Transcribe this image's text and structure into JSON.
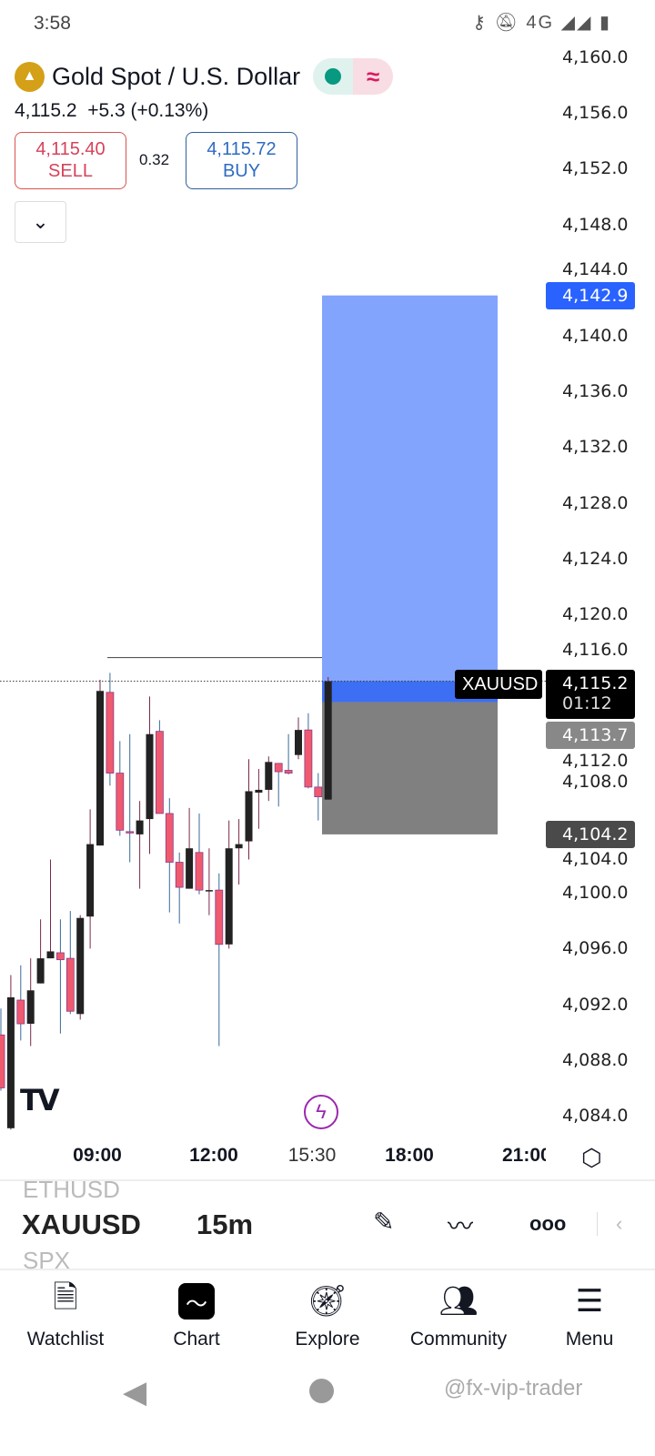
{
  "status_bar": {
    "time": "3:58",
    "icons": [
      "key-icon",
      "bell-off-icon",
      "volte-icon",
      "4g-icon",
      "signal-icon",
      "signal-icon",
      "battery-icon"
    ],
    "network": "4G"
  },
  "header": {
    "title": "Gold Spot / U.S. Dollar",
    "price": "4,115.2",
    "change": "+5.3 (+0.13%)",
    "sell_price": "4,115.40",
    "sell_label": "SELL",
    "spread": "0.32",
    "buy_price": "4,115.72",
    "buy_label": "BUY",
    "market_status": "open",
    "status_symbol": "≈"
  },
  "colors": {
    "up": "#222222",
    "down": "#f05a6e",
    "target": "#82a4fc",
    "target_dark": "#3d6ff5",
    "stop": "#808080",
    "sell": "#d6435a",
    "buy": "#2f6bc0"
  },
  "chart_data": {
    "type": "candlestick",
    "symbol": "XAUUSD",
    "interval": "15m",
    "ylim": [
      4084,
      4160
    ],
    "y_ticks": [
      "4,160.0",
      "4,156.0",
      "4,152.0",
      "4,148.0",
      "4,144.0",
      "4,140.0",
      "4,136.0",
      "4,132.0",
      "4,128.0",
      "4,124.0",
      "4,120.0",
      "4,116.0",
      "4,112.0",
      "4,108.0",
      "4,104.0",
      "4,100.0",
      "4,096.0",
      "4,092.0",
      "4,088.0",
      "4,084.0"
    ],
    "x_ticks": [
      "09:00",
      "12:00",
      "15:30",
      "18:00",
      "21:00"
    ],
    "candles_ohlc": [
      [
        4089.8,
        4091.7,
        4085.8,
        4086.0
      ],
      [
        4083.1,
        4094.1,
        4083.0,
        4092.5
      ],
      [
        4092.3,
        4094.8,
        4089.4,
        4090.6
      ],
      [
        4090.6,
        4095.3,
        4089.0,
        4093.0
      ],
      [
        4093.5,
        4098.1,
        4093.5,
        4095.3
      ],
      [
        4095.3,
        4102.4,
        4095.3,
        4095.8
      ],
      [
        4095.7,
        4098.1,
        4089.9,
        4095.2
      ],
      [
        4095.3,
        4098.7,
        4091.3,
        4091.5
      ],
      [
        4091.3,
        4098.4,
        4090.9,
        4098.2
      ],
      [
        4098.3,
        4106.0,
        4096.0,
        4103.5
      ],
      [
        4103.4,
        4115.3,
        4103.4,
        4114.5
      ],
      [
        4114.4,
        4115.8,
        4107.7,
        4108.6
      ],
      [
        4108.6,
        4110.9,
        4104.1,
        4104.5
      ],
      [
        4104.4,
        4111.4,
        4102.2,
        4104.3
      ],
      [
        4104.2,
        4106.6,
        4100.3,
        4105.2
      ],
      [
        4105.3,
        4114.1,
        4102.8,
        4111.4
      ],
      [
        4111.6,
        4112.4,
        4105.7,
        4105.7
      ],
      [
        4105.7,
        4106.8,
        4098.6,
        4102.2
      ],
      [
        4102.2,
        4102.9,
        4097.8,
        4100.4
      ],
      [
        4100.3,
        4106.1,
        4100.3,
        4103.2
      ],
      [
        4102.9,
        4105.7,
        4099.9,
        4100.2
      ],
      [
        4100.2,
        4103.2,
        4098.4,
        4100.2
      ],
      [
        4100.2,
        4101.4,
        4089.0,
        4096.3
      ],
      [
        4096.3,
        4105.2,
        4096.0,
        4103.2
      ],
      [
        4103.2,
        4105.3,
        4100.6,
        4103.5
      ],
      [
        4103.7,
        4109.6,
        4102.4,
        4107.3
      ],
      [
        4107.2,
        4108.9,
        4104.6,
        4107.4
      ],
      [
        4107.4,
        4109.8,
        4106.6,
        4109.4
      ],
      [
        4109.3,
        4109.3,
        4106.2,
        4108.7
      ],
      [
        4108.8,
        4111.4,
        4108.5,
        4108.6
      ],
      [
        4109.9,
        4112.6,
        4109.6,
        4111.7
      ],
      [
        4111.7,
        4112.9,
        4107.5,
        4107.6
      ],
      [
        4107.6,
        4108.6,
        4105.2,
        4106.9
      ],
      [
        4106.7,
        4115.5,
        4106.7,
        4115.2
      ]
    ],
    "horizontal_line": 4116.9,
    "position": {
      "type": "long",
      "target": "4,142.9",
      "entry": "4,113.7",
      "stop": "4,104.2",
      "target_value": 4142.9,
      "entry_value": 4113.7,
      "stop_value": 4104.2
    },
    "current_price": {
      "label": "XAUUSD",
      "value": "4,115.2",
      "countdown": "01:12",
      "numeric": 4115.2
    }
  },
  "toolbar": {
    "ghost_above": "ETHUSD",
    "symbol": "XAUUSD",
    "interval": "15m",
    "ghost_below": "SPX"
  },
  "tabs": [
    {
      "label": "Watchlist",
      "icon": "watchlist-icon"
    },
    {
      "label": "Chart",
      "icon": "chart-icon"
    },
    {
      "label": "Explore",
      "icon": "compass-icon"
    },
    {
      "label": "Community",
      "icon": "community-icon"
    },
    {
      "label": "Menu",
      "icon": "menu-icon"
    }
  ],
  "watermark": "@fx-vip-trader"
}
